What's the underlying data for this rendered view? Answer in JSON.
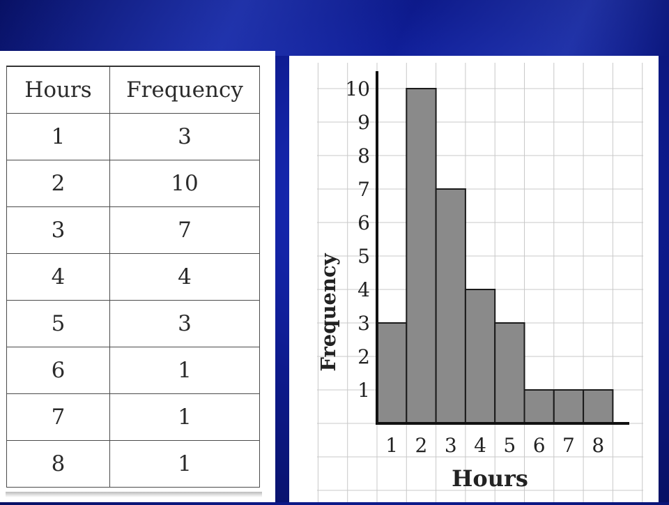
{
  "table": {
    "headers": [
      "Hours",
      "Frequency"
    ],
    "rows": [
      [
        "1",
        "3"
      ],
      [
        "2",
        "10"
      ],
      [
        "3",
        "7"
      ],
      [
        "4",
        "4"
      ],
      [
        "5",
        "3"
      ],
      [
        "6",
        "1"
      ],
      [
        "7",
        "1"
      ],
      [
        "8",
        "1"
      ]
    ]
  },
  "chart_data": {
    "type": "bar",
    "categories": [
      "1",
      "2",
      "3",
      "4",
      "5",
      "6",
      "7",
      "8"
    ],
    "values": [
      3,
      10,
      7,
      4,
      3,
      1,
      1,
      1
    ],
    "title": "",
    "xlabel": "Hours",
    "ylabel": "Frequency",
    "ylim": [
      0,
      10
    ],
    "yticks": [
      1,
      2,
      3,
      4,
      5,
      6,
      7,
      8,
      9,
      10
    ],
    "grid": true,
    "bar_color": "#8a8a8a"
  }
}
